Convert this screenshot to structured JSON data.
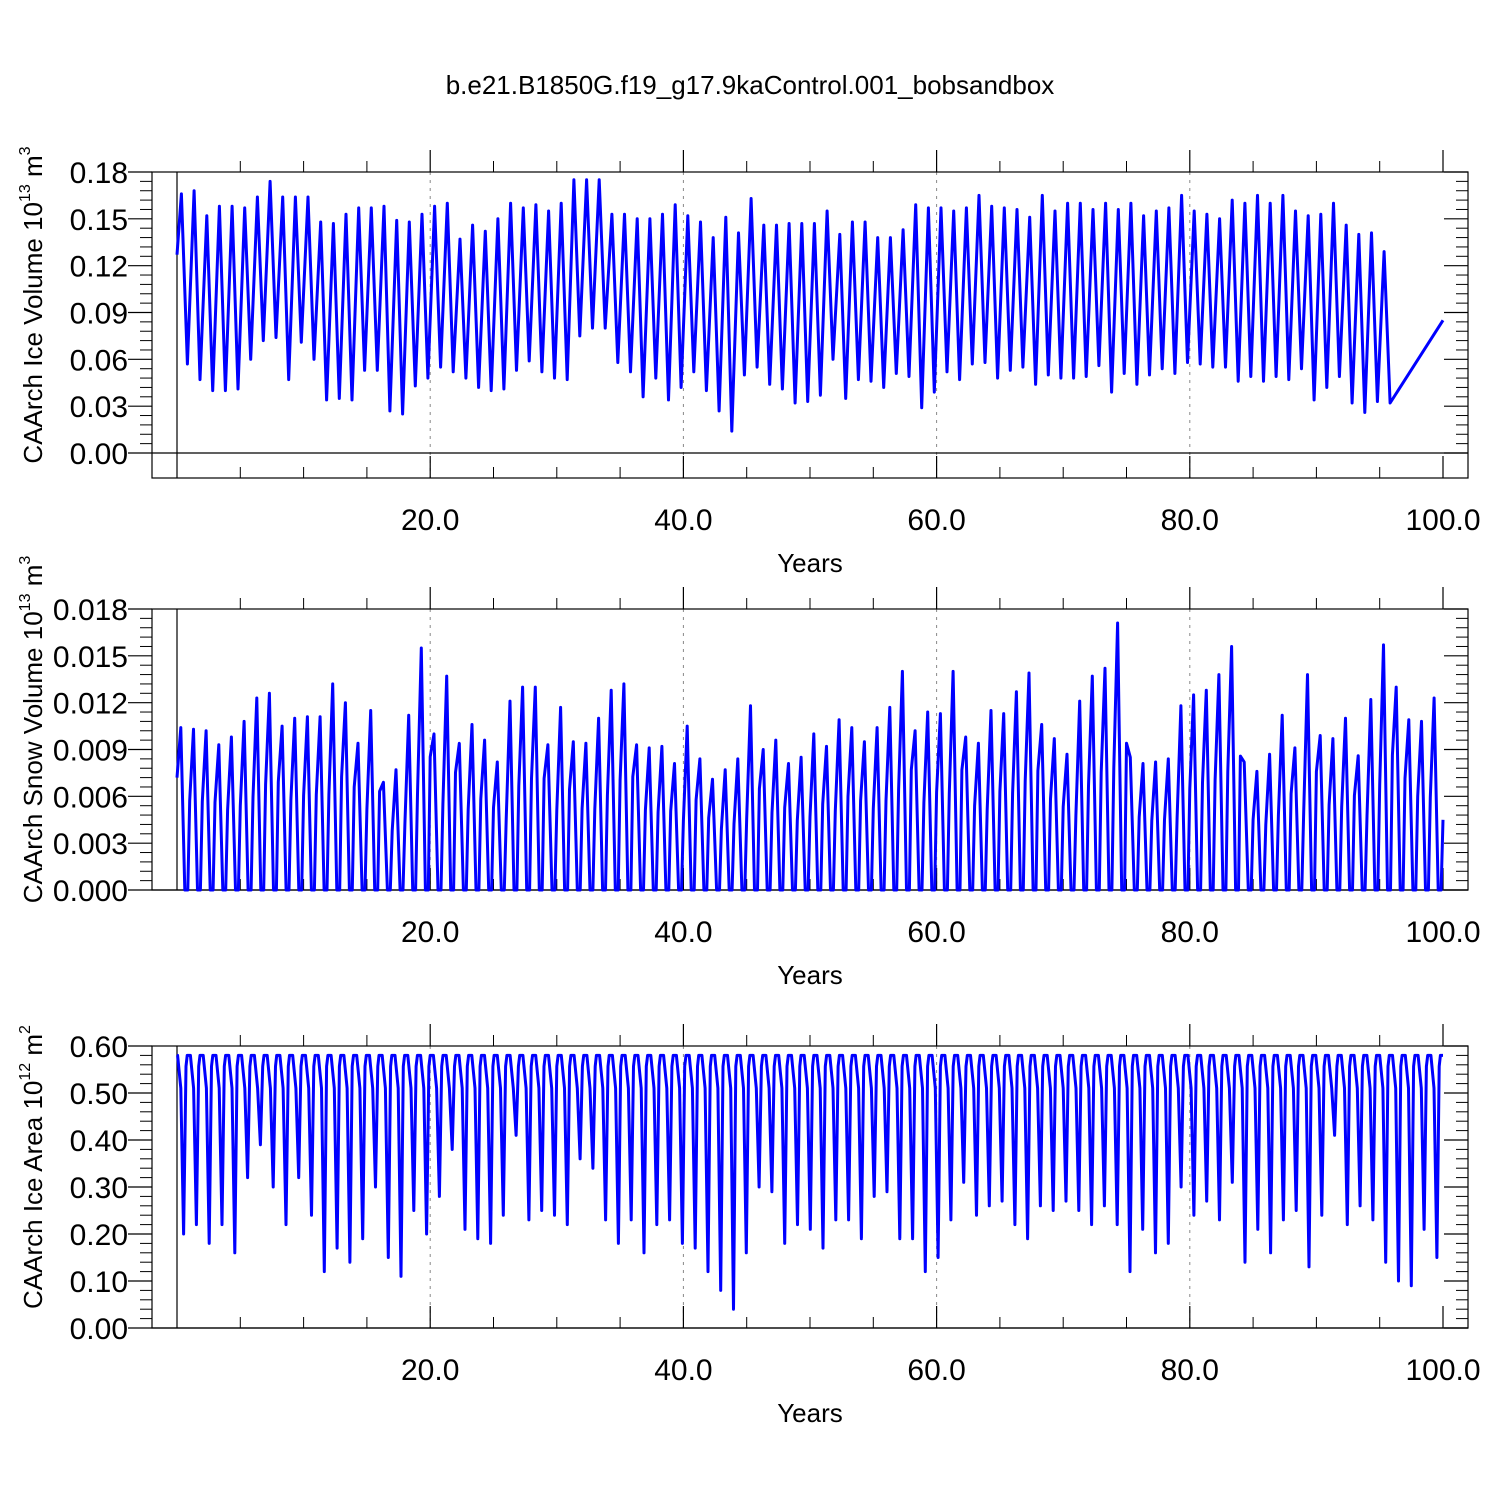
{
  "title": "b.e21.B1850G.f19_g17.9kaControl.001_bobsandbox",
  "colors": {
    "series": "#0000ff",
    "axis": "#000000",
    "grid": "#888888"
  },
  "chart_data": [
    {
      "type": "line",
      "ylabel_main": "CAArch Ice Volume 10",
      "ylabel_exp": "13",
      "ylabel_unit": " m",
      "ylabel_unit_exp": "3",
      "xlabel": "Years",
      "xlim": [
        0,
        100
      ],
      "ylim": [
        0,
        0.18
      ],
      "xticks": [
        20,
        40,
        60,
        80,
        100
      ],
      "xtick_labels": [
        "20.0",
        "40.0",
        "60.0",
        "80.0",
        "100.0"
      ],
      "yticks": [
        0,
        0.03,
        0.06,
        0.09,
        0.12,
        0.15,
        0.18
      ],
      "ytick_labels": [
        "0.00",
        "0.03",
        "0.06",
        "0.09",
        "0.12",
        "0.15",
        "0.18"
      ],
      "grid": "vertical dashed at major x ticks",
      "series": [
        {
          "description": "annual cycle, one max and one min per year",
          "start": 0.127,
          "end": 0.085,
          "annual_max": [
            0.166,
            0.168,
            0.152,
            0.158,
            0.158,
            0.157,
            0.164,
            0.174,
            0.164,
            0.164,
            0.164,
            0.148,
            0.147,
            0.153,
            0.157,
            0.157,
            0.158,
            0.149,
            0.148,
            0.153,
            0.158,
            0.16,
            0.137,
            0.146,
            0.142,
            0.15,
            0.16,
            0.157,
            0.159,
            0.155,
            0.16,
            0.175,
            0.175,
            0.175,
            0.153,
            0.153,
            0.15,
            0.15,
            0.153,
            0.159,
            0.152,
            0.148,
            0.138,
            0.151,
            0.141,
            0.163,
            0.146,
            0.146,
            0.147,
            0.147,
            0.147,
            0.155,
            0.14,
            0.148,
            0.148,
            0.138,
            0.138,
            0.143,
            0.159,
            0.157,
            0.157,
            0.155,
            0.157,
            0.165,
            0.158,
            0.157,
            0.156,
            0.151,
            0.165,
            0.155,
            0.16,
            0.16,
            0.156,
            0.16,
            0.156,
            0.16,
            0.152,
            0.155,
            0.157,
            0.165,
            0.155,
            0.153,
            0.15,
            0.162,
            0.16,
            0.165,
            0.16,
            0.165,
            0.155,
            0.152,
            0.153,
            0.16,
            0.146,
            0.14,
            0.141,
            0.129
          ],
          "annual_min": [
            0.057,
            0.047,
            0.04,
            0.04,
            0.041,
            0.06,
            0.072,
            0.074,
            0.047,
            0.071,
            0.06,
            0.034,
            0.035,
            0.034,
            0.053,
            0.053,
            0.027,
            0.025,
            0.043,
            0.048,
            0.055,
            0.052,
            0.048,
            0.042,
            0.04,
            0.041,
            0.053,
            0.059,
            0.052,
            0.048,
            0.047,
            0.075,
            0.08,
            0.08,
            0.058,
            0.052,
            0.036,
            0.048,
            0.034,
            0.042,
            0.052,
            0.04,
            0.027,
            0.014,
            0.05,
            0.055,
            0.044,
            0.041,
            0.032,
            0.033,
            0.037,
            0.06,
            0.035,
            0.047,
            0.046,
            0.042,
            0.051,
            0.049,
            0.029,
            0.039,
            0.052,
            0.047,
            0.057,
            0.058,
            0.048,
            0.053,
            0.055,
            0.044,
            0.05,
            0.048,
            0.048,
            0.049,
            0.056,
            0.039,
            0.051,
            0.044,
            0.05,
            0.054,
            0.051,
            0.058,
            0.057,
            0.055,
            0.055,
            0.046,
            0.049,
            0.046,
            0.049,
            0.047,
            0.054,
            0.034,
            0.042,
            0.049,
            0.032,
            0.026,
            0.033,
            0.032
          ]
        }
      ]
    },
    {
      "type": "line",
      "ylabel_main": "CAArch Snow Volume 10",
      "ylabel_exp": "13",
      "ylabel_unit": " m",
      "ylabel_unit_exp": "3",
      "xlabel": "Years",
      "xlim": [
        0,
        100
      ],
      "ylim": [
        0,
        0.018
      ],
      "xticks": [
        20,
        40,
        60,
        80,
        100
      ],
      "xtick_labels": [
        "20.0",
        "40.0",
        "60.0",
        "80.0",
        "100.0"
      ],
      "yticks": [
        0,
        0.003,
        0.006,
        0.009,
        0.012,
        0.015,
        0.018
      ],
      "ytick_labels": [
        "0.000",
        "0.003",
        "0.006",
        "0.009",
        "0.012",
        "0.015",
        "0.018"
      ],
      "grid": "vertical dashed at major x ticks",
      "series": [
        {
          "description": "annual sawtooth, peak each spring then drops to zero",
          "start": 0.0072,
          "end": 0.0045,
          "annual_min_value": 0.0,
          "annual_max": [
            0.0104,
            0.0103,
            0.0102,
            0.0093,
            0.0098,
            0.0108,
            0.0123,
            0.0126,
            0.0105,
            0.011,
            0.0111,
            0.0111,
            0.0132,
            0.012,
            0.0094,
            0.0115,
            0.0069,
            0.0077,
            0.0112,
            0.0155,
            0.01,
            0.0137,
            0.0094,
            0.0106,
            0.0096,
            0.0082,
            0.0121,
            0.013,
            0.013,
            0.0093,
            0.0117,
            0.0095,
            0.0094,
            0.011,
            0.0128,
            0.0132,
            0.0093,
            0.0091,
            0.0092,
            0.0081,
            0.0105,
            0.0084,
            0.0071,
            0.0077,
            0.0084,
            0.0118,
            0.009,
            0.0096,
            0.0081,
            0.0085,
            0.01,
            0.0092,
            0.0109,
            0.0104,
            0.0095,
            0.0104,
            0.0117,
            0.014,
            0.0102,
            0.0114,
            0.0113,
            0.014,
            0.0098,
            0.0094,
            0.0115,
            0.0113,
            0.0127,
            0.0139,
            0.0106,
            0.0097,
            0.0087,
            0.0121,
            0.0137,
            0.0142,
            0.0171,
            0.0085,
            0.0081,
            0.0082,
            0.0084,
            0.0118,
            0.0125,
            0.0128,
            0.0138,
            0.0156,
            0.0082,
            0.0076,
            0.0087,
            0.0112,
            0.0091,
            0.0138,
            0.0099,
            0.0097,
            0.011,
            0.0086,
            0.0122,
            0.0157,
            0.013,
            0.0109,
            0.0108,
            0.0123
          ]
        }
      ]
    },
    {
      "type": "line",
      "ylabel_main": "CAArch Ice Area 10",
      "ylabel_exp": "12",
      "ylabel_unit": " m",
      "ylabel_unit_exp": "2",
      "xlabel": "Years",
      "xlim": [
        0,
        100
      ],
      "ylim": [
        0,
        0.6
      ],
      "xticks": [
        20,
        40,
        60,
        80,
        100
      ],
      "xtick_labels": [
        "20.0",
        "40.0",
        "60.0",
        "80.0",
        "100.0"
      ],
      "yticks": [
        0,
        0.1,
        0.2,
        0.3,
        0.4,
        0.5,
        0.6
      ],
      "ytick_labels": [
        "0.00",
        "0.10",
        "0.20",
        "0.30",
        "0.40",
        "0.50",
        "0.60"
      ],
      "grid": "vertical dashed at major x ticks",
      "series": [
        {
          "description": "ice area saturated near 0.58 most of the year with sharp summer minima",
          "plateau": 0.58,
          "start": 0.58,
          "end": 0.58,
          "annual_min": [
            0.2,
            0.22,
            0.18,
            0.22,
            0.16,
            0.32,
            0.39,
            0.3,
            0.22,
            0.32,
            0.24,
            0.12,
            0.17,
            0.14,
            0.19,
            0.3,
            0.15,
            0.11,
            0.25,
            0.2,
            0.28,
            0.38,
            0.21,
            0.19,
            0.18,
            0.24,
            0.41,
            0.23,
            0.25,
            0.24,
            0.22,
            0.36,
            0.34,
            0.23,
            0.18,
            0.23,
            0.16,
            0.22,
            0.23,
            0.18,
            0.17,
            0.12,
            0.08,
            0.04,
            0.16,
            0.3,
            0.29,
            0.18,
            0.22,
            0.21,
            0.17,
            0.23,
            0.23,
            0.19,
            0.28,
            0.29,
            0.19,
            0.19,
            0.12,
            0.15,
            0.23,
            0.31,
            0.24,
            0.26,
            0.27,
            0.22,
            0.19,
            0.26,
            0.25,
            0.27,
            0.25,
            0.22,
            0.26,
            0.22,
            0.12,
            0.21,
            0.16,
            0.18,
            0.3,
            0.24,
            0.27,
            0.23,
            0.31,
            0.14,
            0.21,
            0.16,
            0.23,
            0.25,
            0.13,
            0.24,
            0.41,
            0.22,
            0.26,
            0.23,
            0.14,
            0.1,
            0.09,
            0.21,
            0.15
          ]
        }
      ]
    }
  ]
}
